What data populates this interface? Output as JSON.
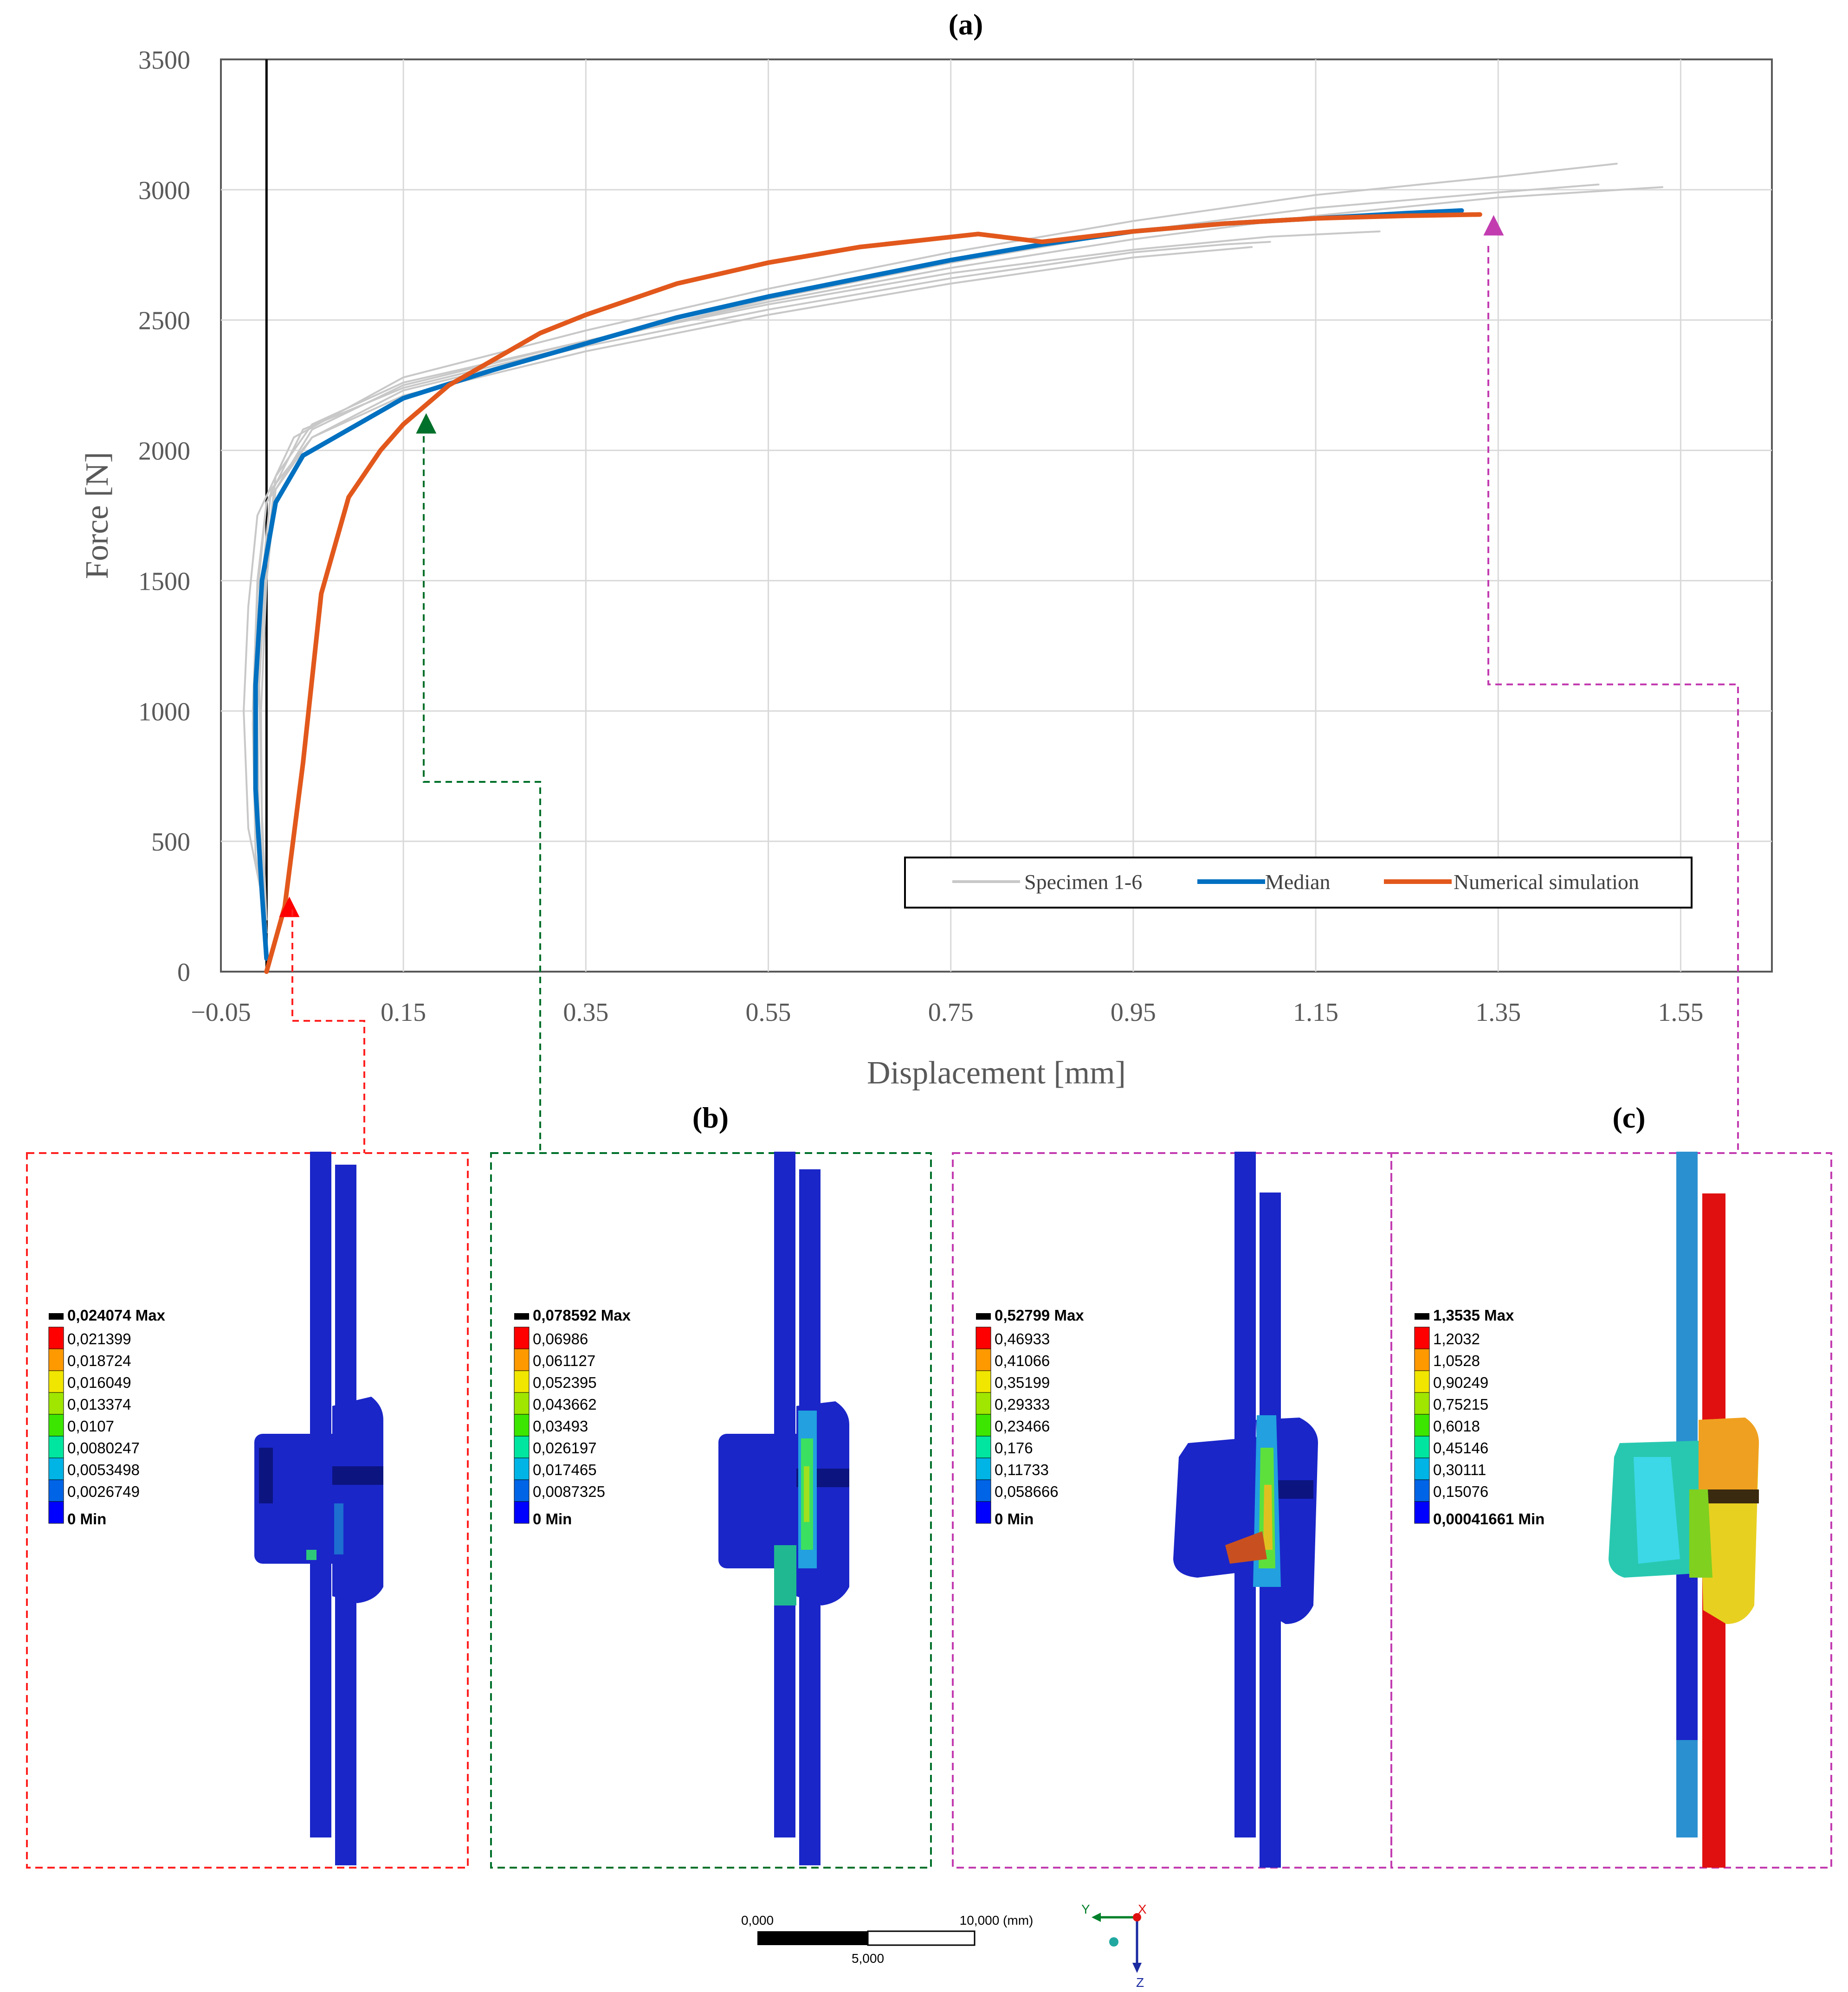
{
  "chart_data": {
    "type": "line",
    "panel_label": "(a)",
    "xlabel": "Displacement [mm]",
    "ylabel": "Force [N]",
    "xlim": [
      -0.05,
      1.65
    ],
    "ylim": [
      0,
      3500
    ],
    "xticks": [
      "−0.05",
      "0.15",
      "0.35",
      "0.55",
      "0.75",
      "0.95",
      "1.15",
      "1.35",
      "1.55"
    ],
    "xtick_values": [
      -0.05,
      0.15,
      0.35,
      0.55,
      0.75,
      0.95,
      1.15,
      1.35,
      1.55
    ],
    "yticks": [
      "0",
      "500",
      "1000",
      "1500",
      "2000",
      "2500",
      "3000",
      "3500"
    ],
    "ytick_values": [
      0,
      500,
      1000,
      1500,
      2000,
      2500,
      3000,
      3500
    ],
    "grid": true,
    "legend_position": "bottom-right",
    "series": [
      {
        "name": "Specimen 1-6",
        "color": "#c8c8c8",
        "legend": true,
        "x": [
          0.0,
          -0.01,
          -0.015,
          -0.01,
          0.0,
          0.05,
          0.15,
          0.35,
          0.55,
          0.75,
          0.95,
          1.05,
          1.1
        ],
        "y": [
          150,
          500,
          1000,
          1500,
          1800,
          2050,
          2230,
          2400,
          2540,
          2660,
          2760,
          2790,
          2800
        ]
      },
      {
        "name": "Specimen 2",
        "color": "#c8c8c8",
        "legend": false,
        "x": [
          0.0,
          -0.005,
          -0.008,
          0.0,
          0.01,
          0.05,
          0.15,
          0.35,
          0.55,
          0.75,
          0.95,
          1.1,
          1.22
        ],
        "y": [
          200,
          600,
          1100,
          1600,
          1900,
          2100,
          2260,
          2420,
          2560,
          2680,
          2770,
          2820,
          2840
        ]
      },
      {
        "name": "Specimen 3",
        "color": "#c8c8c8",
        "legend": false,
        "x": [
          0.0,
          -0.02,
          -0.025,
          -0.02,
          -0.01,
          0.03,
          0.15,
          0.35,
          0.55,
          0.75,
          0.95,
          1.15,
          1.35,
          1.48
        ],
        "y": [
          200,
          550,
          1000,
          1400,
          1750,
          2050,
          2280,
          2460,
          2620,
          2760,
          2880,
          2980,
          3050,
          3100
        ]
      },
      {
        "name": "Specimen 4",
        "color": "#c8c8c8",
        "legend": false,
        "x": [
          0.0,
          -0.012,
          -0.015,
          -0.01,
          0.0,
          0.04,
          0.15,
          0.35,
          0.55,
          0.75,
          0.95,
          1.15,
          1.35,
          1.46
        ],
        "y": [
          150,
          450,
          950,
          1450,
          1800,
          2080,
          2240,
          2410,
          2580,
          2720,
          2840,
          2930,
          2990,
          3020
        ]
      },
      {
        "name": "Specimen 5",
        "color": "#c8c8c8",
        "legend": false,
        "x": [
          0.0,
          -0.005,
          -0.006,
          0.0,
          0.01,
          0.05,
          0.15,
          0.35,
          0.55,
          0.75,
          0.95,
          1.15,
          1.35,
          1.53
        ],
        "y": [
          100,
          500,
          1000,
          1500,
          1850,
          2080,
          2250,
          2420,
          2570,
          2700,
          2810,
          2900,
          2970,
          3010
        ]
      },
      {
        "name": "Specimen 6",
        "color": "#c8c8c8",
        "legend": false,
        "x": [
          0.0,
          -0.008,
          -0.01,
          -0.005,
          0.005,
          0.05,
          0.15,
          0.35,
          0.55,
          0.75,
          0.95,
          1.08
        ],
        "y": [
          150,
          500,
          1000,
          1500,
          1850,
          2050,
          2210,
          2380,
          2520,
          2640,
          2740,
          2780
        ]
      },
      {
        "name": "Median",
        "color": "#0070c0",
        "legend": true,
        "x": [
          0.0,
          -0.005,
          -0.012,
          -0.012,
          -0.005,
          0.01,
          0.04,
          0.1,
          0.15,
          0.25,
          0.35,
          0.45,
          0.55,
          0.65,
          0.75,
          0.85,
          0.95,
          1.05,
          1.15,
          1.25,
          1.31
        ],
        "y": [
          50,
          300,
          700,
          1100,
          1500,
          1800,
          1980,
          2100,
          2200,
          2310,
          2410,
          2510,
          2590,
          2660,
          2730,
          2790,
          2840,
          2870,
          2890,
          2910,
          2920
        ]
      },
      {
        "name": "Numerical simulation",
        "color": "#e2581c",
        "legend": true,
        "x": [
          0.0,
          0.02,
          0.04,
          0.06,
          0.09,
          0.125,
          0.15,
          0.2,
          0.25,
          0.3,
          0.35,
          0.4,
          0.45,
          0.55,
          0.65,
          0.78,
          0.85,
          0.95,
          1.05,
          1.15,
          1.25,
          1.33
        ],
        "y": [
          0,
          250,
          800,
          1450,
          1820,
          2000,
          2100,
          2250,
          2350,
          2450,
          2520,
          2580,
          2640,
          2720,
          2780,
          2830,
          2800,
          2840,
          2870,
          2890,
          2900,
          2905
        ]
      }
    ],
    "markers": [
      {
        "name": "red-marker",
        "x": 0.025,
        "y": 245,
        "color": "#ff0000"
      },
      {
        "name": "green-marker",
        "x": 0.175,
        "y": 2100,
        "color": "#00702a"
      },
      {
        "name": "magenta-marker",
        "x": 1.345,
        "y": 2860,
        "color": "#c23cb0"
      }
    ]
  },
  "legend": {
    "specimen": "Specimen 1-6",
    "median": "Median",
    "simulation": "Numerical simulation"
  },
  "panels": {
    "b_label": "(b)",
    "c_label": "(c)",
    "colorbars": [
      {
        "max_label": "0,024074 Max",
        "values": [
          "0,021399",
          "0,018724",
          "0,016049",
          "0,013374",
          "0,0107",
          "0,0080247",
          "0,0053498",
          "0,0026749"
        ],
        "min_label": "0 Min"
      },
      {
        "max_label": "0,078592 Max",
        "values": [
          "0,06986",
          "0,061127",
          "0,052395",
          "0,043662",
          "0,03493",
          "0,026197",
          "0,017465",
          "0,0087325"
        ],
        "min_label": "0 Min"
      },
      {
        "max_label": "0,52799 Max",
        "values": [
          "0,46933",
          "0,41066",
          "0,35199",
          "0,29333",
          "0,23466",
          "0,176",
          "0,11733",
          "0,058666"
        ],
        "min_label": "0 Min"
      },
      {
        "max_label": "1,3535 Max",
        "values": [
          "1,2032",
          "1,0528",
          "0,90249",
          "0,75215",
          "0,6018",
          "0,45146",
          "0,30111",
          "0,15076"
        ],
        "min_label": "0,00041661 Min"
      }
    ],
    "colorscale": [
      "#ff0000",
      "#ff9900",
      "#f0e600",
      "#a0e600",
      "#3ce600",
      "#00e6a0",
      "#00b4e6",
      "#0064e6",
      "#0000ff"
    ]
  },
  "scale_bar": {
    "start": "0,000",
    "end": "10,000 (mm)",
    "mid": "5,000"
  },
  "triad": {
    "y": "Y",
    "x": "X",
    "z": "Z"
  }
}
